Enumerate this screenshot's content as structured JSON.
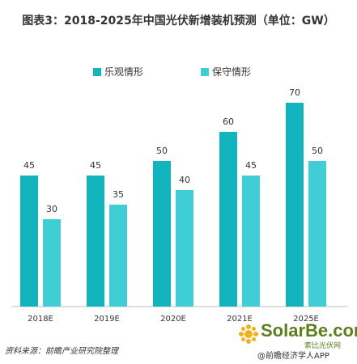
{
  "title": "图表3：2018-2025年中国光伏新增装机预测（单位：GW）",
  "source": "资料来源：前瞻产业研究院整理",
  "watermark": {
    "brand": "SolarBe.com",
    "brand_cn": "索比光伏网",
    "app": "@前瞻经济学人APP"
  },
  "colors": {
    "optimistic": "#12b5be",
    "conservative": "#3fcdd6"
  },
  "chart_data": {
    "type": "bar",
    "categories": [
      "2018E",
      "2019E",
      "2020E",
      "2021E",
      "2025E"
    ],
    "series": [
      {
        "name": "乐观情形",
        "values": [
          45,
          45,
          50,
          60,
          70
        ]
      },
      {
        "name": "保守情形",
        "values": [
          30,
          35,
          40,
          45,
          50
        ]
      }
    ],
    "ylim": [
      0,
      70
    ],
    "grid": false,
    "legend": "top-center",
    "data_labels": true
  }
}
